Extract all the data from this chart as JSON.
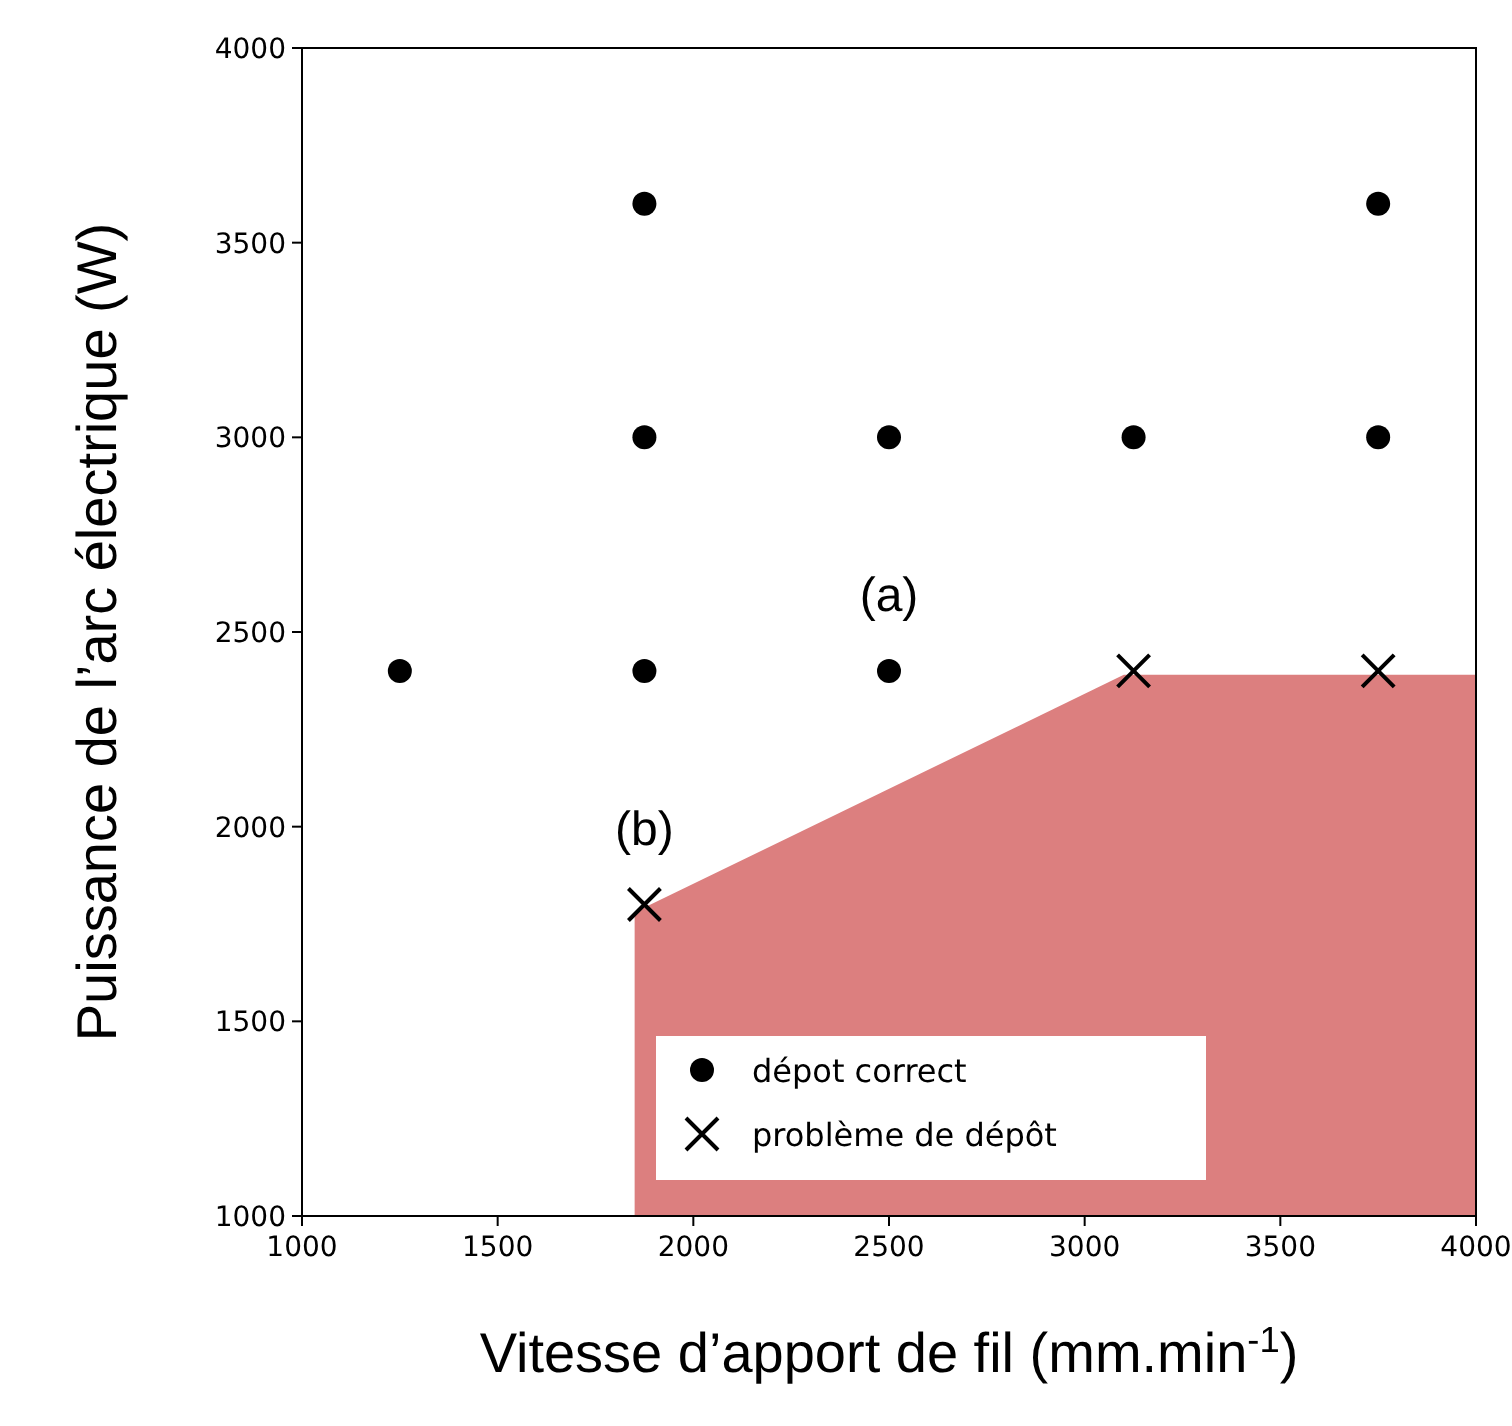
{
  "chart_data": {
    "type": "scatter",
    "xlabel": "Vitesse d’apport de fil (mm.min$^{-1}$)",
    "ylabel": "Puissance de l’arc électrique (W)",
    "xlim": [
      1000,
      4000
    ],
    "ylim": [
      1000,
      4000
    ],
    "xticks": [
      1000,
      1500,
      2000,
      2500,
      3000,
      3500,
      4000
    ],
    "yticks": [
      1000,
      1500,
      2000,
      2500,
      3000,
      3500,
      4000
    ],
    "grid": false,
    "legend": "bottom",
    "series": [
      {
        "type": "area",
        "color": "#dc7f7f",
        "x": [
          1850,
          3100,
          4000
        ],
        "values": [
          1780,
          2390,
          2390
        ]
      },
      {
        "name": "dépot correct",
        "color": "#000000",
        "marker": "circle",
        "x": [
          1250,
          1875,
          2500,
          1875,
          2500,
          3125,
          3750,
          1875,
          3750
        ],
        "values": [
          2400,
          2400,
          2400,
          3000,
          3000,
          3000,
          3000,
          3600,
          3600
        ]
      },
      {
        "name": "problème de dépôt",
        "color": "#000000",
        "marker": "cross",
        "x": [
          1875,
          3125,
          3750
        ],
        "values": [
          1800,
          2400,
          2400
        ]
      }
    ],
    "annotations": [
      {
        "text": "(a)",
        "x": 2500,
        "y": 2400
      },
      {
        "text": "(b)",
        "x": 1875,
        "y": 1800
      }
    ]
  }
}
